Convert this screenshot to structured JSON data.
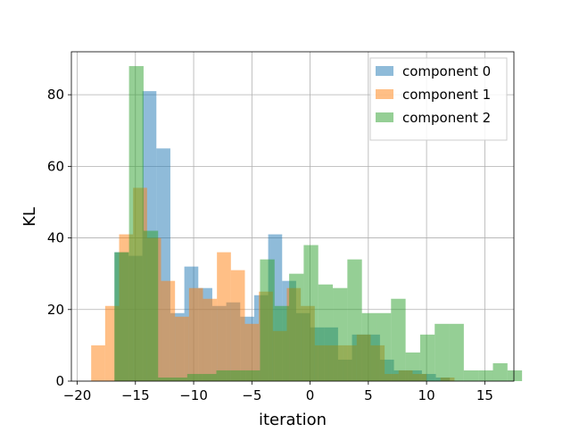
{
  "chart_data": {
    "type": "bar",
    "subtype": "overlaid-histogram",
    "xlabel": "iteration",
    "ylabel": "KL",
    "xlim": [
      -20.5,
      17.5
    ],
    "ylim": [
      0,
      92
    ],
    "xticks": [
      -20,
      -15,
      -10,
      -5,
      0,
      5,
      10,
      15
    ],
    "yticks": [
      0,
      20,
      40,
      60,
      80
    ],
    "grid": true,
    "legend_position": "top-right",
    "bar_opacity": 0.5,
    "series": [
      {
        "name": "component 0",
        "color": "#1f77b4",
        "bin_start": -16.8,
        "bin_width": 1.2,
        "values": [
          36,
          35,
          81,
          65,
          19,
          32,
          26,
          21,
          22,
          18,
          24,
          41,
          28,
          19,
          15,
          15,
          6,
          13,
          13,
          6,
          3,
          3,
          2,
          1,
          0,
          0,
          0,
          0,
          0
        ]
      },
      {
        "name": "component 1",
        "color": "#ff7f0e",
        "bin_start": -18.8,
        "bin_width": 1.2,
        "values": [
          10,
          21,
          41,
          54,
          40,
          28,
          18,
          26,
          23,
          36,
          31,
          16,
          25,
          14,
          26,
          21,
          10,
          10,
          10,
          13,
          10,
          2,
          3,
          2,
          0,
          1,
          0,
          0,
          0
        ]
      },
      {
        "name": "component 2",
        "color": "#2ca02c",
        "bin_start": -16.8,
        "bin_width": 1.25,
        "values": [
          36,
          88,
          42,
          1,
          1,
          2,
          2,
          3,
          3,
          3,
          34,
          21,
          30,
          38,
          27,
          26,
          34,
          19,
          19,
          23,
          8,
          13,
          16,
          16,
          3,
          3,
          5,
          3
        ]
      }
    ]
  }
}
